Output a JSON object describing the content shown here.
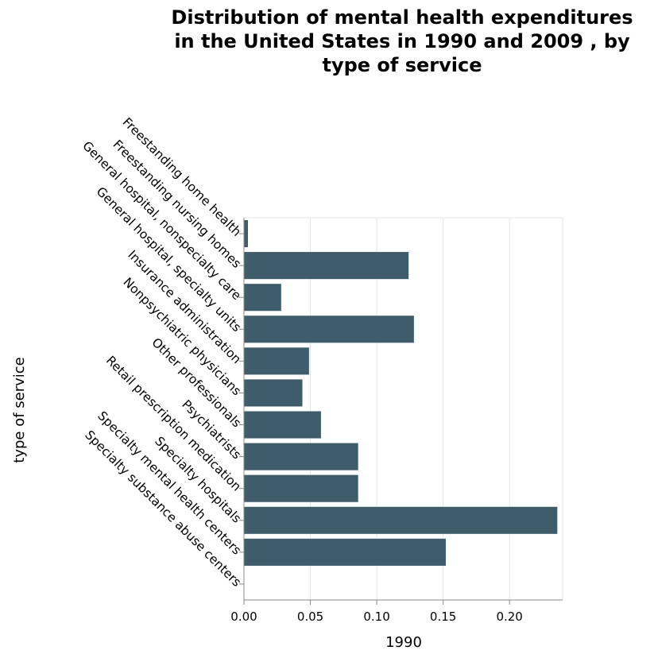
{
  "chart_data": {
    "type": "bar",
    "orientation": "horizontal",
    "title": [
      "Distribution of mental health expenditures",
      "in the United States in 1990 and 2009 , by",
      "type of service"
    ],
    "xlabel": "1990",
    "ylabel": "type of service",
    "xlim": [
      0,
      0.24
    ],
    "xticks": [
      0.0,
      0.05,
      0.1,
      0.15,
      0.2
    ],
    "xtick_labels": [
      "0.00",
      "0.05",
      "0.10",
      "0.15",
      "0.20"
    ],
    "grid": true,
    "bar_color": "#3f5c6b",
    "categories": [
      "Freestanding home health",
      "Freestanding nursing homes",
      "General hospital, nonspecialty care",
      "General hospital, specialty units",
      "Insurance administration",
      "Nonpsychiatric physicians",
      "Other professionals",
      "Psychiatrists",
      "Retail prescription medication",
      "Specialty hospitals",
      "Specialty mental health centers",
      "Specialty substance abuse centers"
    ],
    "values": [
      0.003,
      0.124,
      0.028,
      0.128,
      0.049,
      0.044,
      0.058,
      0.086,
      0.086,
      0.236,
      0.152,
      0
    ]
  }
}
